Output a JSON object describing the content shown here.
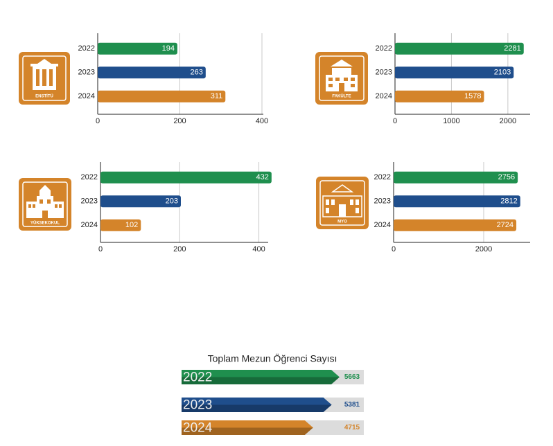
{
  "chart_data": [
    {
      "type": "bar",
      "title": "ENSTİTÜ",
      "categories": [
        "2022",
        "2023",
        "2024"
      ],
      "values": [
        194,
        263,
        311
      ],
      "colors": [
        "#1f8f4e",
        "#1f4e8c",
        "#d4842a"
      ],
      "xlim": [
        0,
        400
      ],
      "xticks": [
        0,
        200,
        400
      ],
      "grid": true
    },
    {
      "type": "bar",
      "title": "FAKÜLTE",
      "categories": [
        "2022",
        "2023",
        "2024"
      ],
      "values": [
        2281,
        2103,
        1578
      ],
      "colors": [
        "#1f8f4e",
        "#1f4e8c",
        "#d4842a"
      ],
      "xlim": [
        0,
        2370
      ],
      "xticks": [
        0,
        1000,
        2000
      ],
      "grid": true
    },
    {
      "type": "bar",
      "title": "YÜKSEKOKUL",
      "categories": [
        "2022",
        "2023",
        "2024"
      ],
      "values": [
        432,
        203,
        102
      ],
      "colors": [
        "#1f8f4e",
        "#1f4e8c",
        "#d4842a"
      ],
      "xlim": [
        0,
        420
      ],
      "xticks": [
        0,
        200,
        400
      ],
      "grid": true
    },
    {
      "type": "bar",
      "title": "MYO",
      "categories": [
        "2022",
        "2023",
        "2024"
      ],
      "values": [
        2756,
        2812,
        2724
      ],
      "colors": [
        "#1f8f4e",
        "#1f4e8c",
        "#d4842a"
      ],
      "xlim": [
        0,
        3000
      ],
      "xticks": [
        0,
        2000
      ],
      "grid": true
    },
    {
      "type": "arrow-bar",
      "title": "Toplam Mezun Öğrenci Sayısı",
      "categories": [
        "2022",
        "2023",
        "2024"
      ],
      "values": [
        5663,
        5381,
        4715
      ],
      "colors": [
        "#1f8f4e",
        "#1f4e8c",
        "#d4842a"
      ]
    }
  ]
}
